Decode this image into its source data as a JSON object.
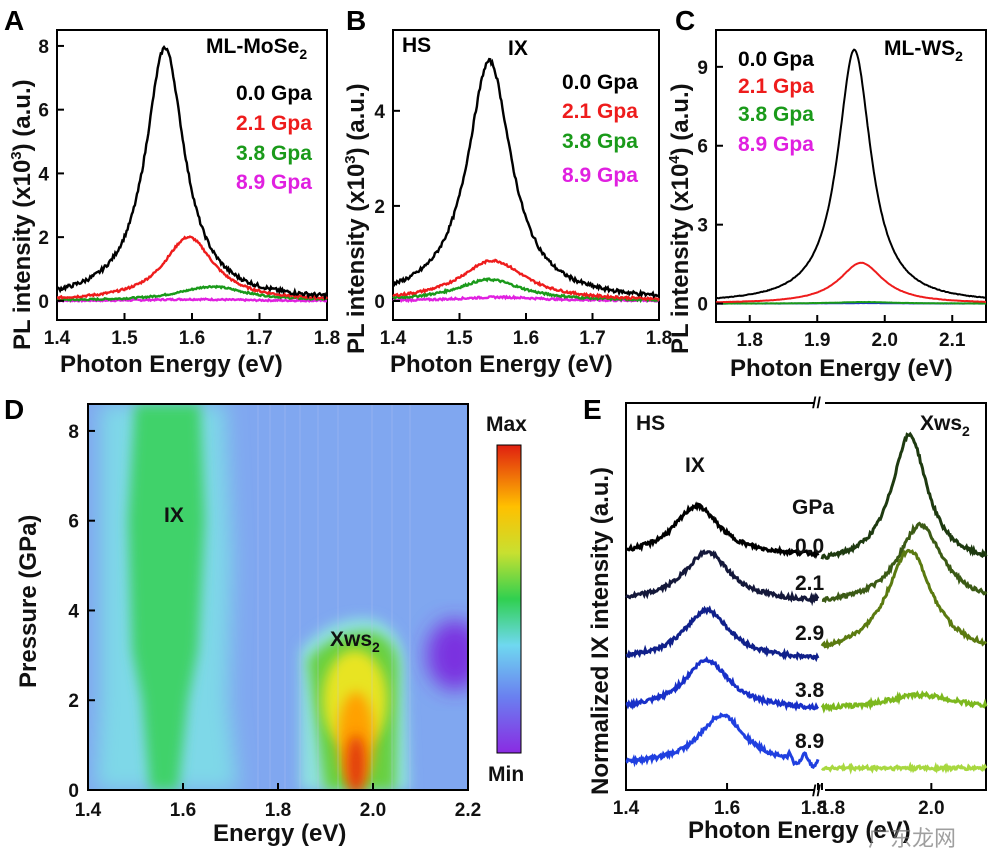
{
  "panels": {
    "A": {
      "letter": "A",
      "title": "ML-MoSe",
      "title_sub": "2",
      "xlabel": "Photon Energy (eV)",
      "ylabel": "PL intensity (x10",
      "ylabel_sup": "3",
      "ylabel_end": ") (a.u.)",
      "xticks": [
        "1.4",
        "1.5",
        "1.6",
        "1.7",
        "1.8"
      ],
      "yticks": [
        "0",
        "2",
        "4",
        "6",
        "8"
      ]
    },
    "B": {
      "letter": "B",
      "hs": "HS",
      "ix": "IX",
      "xlabel": "Photon Energy (eV)",
      "ylabel": "PL intensity (x10",
      "ylabel_sup": "3",
      "ylabel_end": ") (a.u.)",
      "xticks": [
        "1.4",
        "1.5",
        "1.6",
        "1.7",
        "1.8"
      ],
      "yticks": [
        "0",
        "2",
        "4"
      ]
    },
    "C": {
      "letter": "C",
      "title": "ML-WS",
      "title_sub": "2",
      "xlabel": "Photon Energy (eV)",
      "ylabel": "PL intensity (x10",
      "ylabel_sup": "4",
      "ylabel_end": ") (a.u.)",
      "xticks": [
        "1.8",
        "1.9",
        "2.0",
        "2.1"
      ],
      "yticks": [
        "0",
        "3",
        "6",
        "9"
      ]
    },
    "D": {
      "letter": "D",
      "xlabel": "Energy (eV)",
      "ylabel": "Pressure (GPa)",
      "xticks": [
        "1.4",
        "1.6",
        "1.8",
        "2.0",
        "2.2"
      ],
      "yticks": [
        "0",
        "2",
        "4",
        "6",
        "8"
      ],
      "ix": "IX",
      "xws": "Xws",
      "xws_sub": "2",
      "cbar_max": "Max",
      "cbar_min": "Min"
    },
    "E": {
      "letter": "E",
      "hs": "HS",
      "ix": "IX",
      "xws": "Xws",
      "xws_sub": "2",
      "gpa": "GPa",
      "xlabel": "Photon Energy (eV)",
      "ylabel": "Normalized IX intensity (a.u.)",
      "xticks": [
        "1.4",
        "1.6",
        "1.8",
        "1.8",
        "2.0"
      ],
      "pressures": [
        "0.0",
        "2.1",
        "2.9",
        "3.8",
        "8.9"
      ]
    }
  },
  "legend": [
    {
      "label": "0.0 Gpa",
      "color": "#000000"
    },
    {
      "label": "2.1 Gpa",
      "color": "#ee1c1c"
    },
    {
      "label": "3.8 Gpa",
      "color": "#1a9a1a"
    },
    {
      "label": "8.9 Gpa",
      "color": "#e020e0"
    }
  ],
  "watermark": "广东龙网",
  "chart_data": [
    {
      "type": "line",
      "title": "ML-MoSe2",
      "xlabel": "Photon Energy (eV)",
      "ylabel": "PL intensity (x10^3) (a.u.)",
      "xlim": [
        1.4,
        1.8
      ],
      "ylim": [
        -0.6,
        8.5
      ],
      "series": [
        {
          "name": "0.0 Gpa",
          "color": "#000000",
          "peak_x": 1.56,
          "peak_y": 7.95,
          "width": 0.035,
          "base": 0.0
        },
        {
          "name": "2.1 Gpa",
          "color": "#ee1c1c",
          "peak_x": 1.595,
          "peak_y": 2.0,
          "width": 0.045,
          "base": 0.0
        },
        {
          "name": "3.8 Gpa",
          "color": "#1a9a1a",
          "peak_x": 1.63,
          "peak_y": 0.45,
          "width": 0.06,
          "base": 0.0
        },
        {
          "name": "8.9 Gpa",
          "color": "#e020e0",
          "peak_x": 1.6,
          "peak_y": 0.05,
          "width": 0.08,
          "base": 0.0
        }
      ]
    },
    {
      "type": "line",
      "title": "HS",
      "xlabel": "Photon Energy (eV)",
      "ylabel": "PL intensity (x10^3) (a.u.)",
      "xlim": [
        1.4,
        1.8
      ],
      "ylim": [
        -0.4,
        5.7
      ],
      "series": [
        {
          "name": "0.0 Gpa",
          "color": "#000000",
          "peak_x": 1.545,
          "peak_y": 5.05,
          "width": 0.04,
          "base": 0.0
        },
        {
          "name": "2.1 Gpa",
          "color": "#ee1c1c",
          "peak_x": 1.55,
          "peak_y": 0.85,
          "width": 0.06,
          "base": 0.0
        },
        {
          "name": "3.8 Gpa",
          "color": "#1a9a1a",
          "peak_x": 1.545,
          "peak_y": 0.45,
          "width": 0.06,
          "base": 0.0
        },
        {
          "name": "8.9 Gpa",
          "color": "#e020e0",
          "peak_x": 1.56,
          "peak_y": 0.08,
          "width": 0.08,
          "base": 0.0
        }
      ]
    },
    {
      "type": "line",
      "title": "ML-WS2",
      "xlabel": "Photon Energy (eV)",
      "ylabel": "PL intensity (x10^4) (a.u.)",
      "xlim": [
        1.75,
        2.15
      ],
      "ylim": [
        -0.7,
        10.4
      ],
      "series": [
        {
          "name": "0.0 Gpa",
          "color": "#000000",
          "peak_x": 1.955,
          "peak_y": 9.65,
          "width": 0.03,
          "base": 0.0
        },
        {
          "name": "2.1 Gpa",
          "color": "#ee1c1c",
          "peak_x": 1.965,
          "peak_y": 1.55,
          "width": 0.04,
          "base": 0.0
        },
        {
          "name": "3.8 Gpa",
          "color": "#1a9a1a",
          "peak_x": 1.97,
          "peak_y": 0.06,
          "width": 0.05,
          "base": 0.0
        },
        {
          "name": "8.9 Gpa",
          "color": "#2030d0",
          "peak_x": 1.97,
          "peak_y": 0.02,
          "width": 0.06,
          "base": 0.0
        }
      ]
    },
    {
      "type": "heatmap",
      "xlabel": "Energy (eV)",
      "ylabel": "Pressure (GPa)",
      "xlim": [
        1.4,
        2.2
      ],
      "ylim": [
        0,
        8.6
      ],
      "colorbar": [
        "Min",
        "Max"
      ]
    },
    {
      "type": "line",
      "xlabel": "Photon Energy (eV)",
      "ylabel": "Normalized IX intensity (a.u.)",
      "xlim_left": [
        1.4,
        1.78
      ],
      "xlim_right": [
        1.8,
        2.1
      ],
      "series": [
        {
          "name": "0.0",
          "color_left": "#000000",
          "color_right": "#1e3a10",
          "peak_left": 1.54,
          "peak_right": 1.96,
          "offset": 4.0
        },
        {
          "name": "2.1",
          "color_left": "#14183a",
          "color_right": "#3b5a15",
          "peak_left": 1.56,
          "peak_right": 1.98,
          "offset": 3.0
        },
        {
          "name": "2.9",
          "color_left": "#10208a",
          "color_right": "#5a7a10",
          "peak_left": 1.56,
          "peak_right": 1.96,
          "offset": 2.0
        },
        {
          "name": "3.8",
          "color_left": "#1830c8",
          "color_right": "#7cb81e",
          "peak_left": 1.56,
          "peak_right": 1.98,
          "offset": 1.0
        },
        {
          "name": "8.9",
          "color_left": "#2040e0",
          "color_right": "#a8d840",
          "peak_left": 1.59,
          "peak_right": 1.98,
          "offset": 0.0
        }
      ]
    }
  ]
}
